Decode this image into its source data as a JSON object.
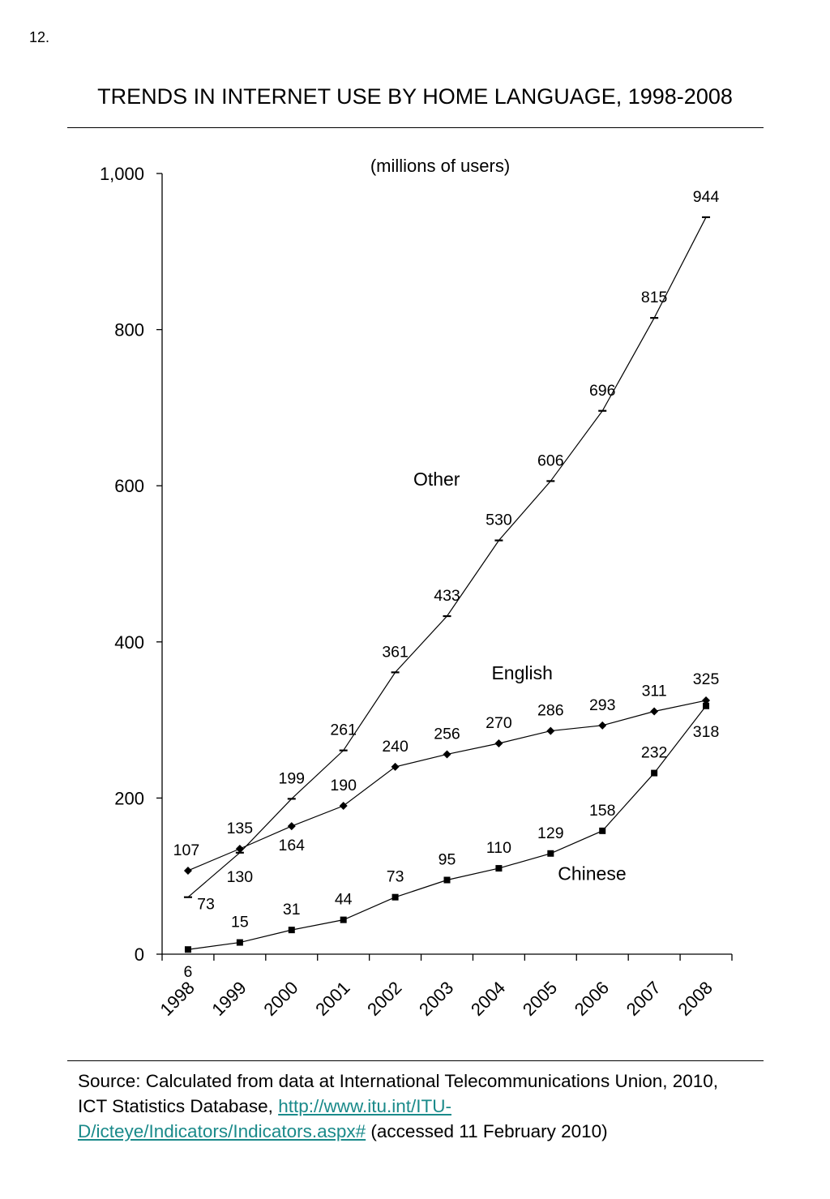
{
  "page_number": "12.",
  "title": "TRENDS IN INTERNET USE BY HOME LANGUAGE, 1998-2008",
  "source": {
    "prefix": "Source: Calculated from data at International Telecommunications Union, 2010, ICT Statistics Database, ",
    "link_text": "http://www.itu.int/ITU-D/icteye/Indicators/Indicators.aspx#",
    "suffix": " (accessed 11 February 2010)"
  },
  "chart_data": {
    "type": "line",
    "subtitle": "(millions of users)",
    "categories": [
      "1998",
      "1999",
      "2000",
      "2001",
      "2002",
      "2003",
      "2004",
      "2005",
      "2006",
      "2007",
      "2008"
    ],
    "ylim": [
      0,
      1000
    ],
    "yticks": [
      0,
      200,
      400,
      600,
      800,
      1000
    ],
    "ytick_labels": [
      "0",
      "200",
      "400",
      "600",
      "800",
      "1,000"
    ],
    "grid": false,
    "series": [
      {
        "name": "Other",
        "marker": "dash",
        "values": [
          73,
          130,
          199,
          261,
          361,
          433,
          530,
          606,
          696,
          815,
          944
        ]
      },
      {
        "name": "English",
        "marker": "diamond",
        "values": [
          107,
          135,
          164,
          190,
          240,
          256,
          270,
          286,
          293,
          311,
          325
        ]
      },
      {
        "name": "Chinese",
        "marker": "square",
        "values": [
          6,
          15,
          31,
          44,
          73,
          95,
          110,
          129,
          158,
          232,
          318
        ]
      }
    ]
  }
}
